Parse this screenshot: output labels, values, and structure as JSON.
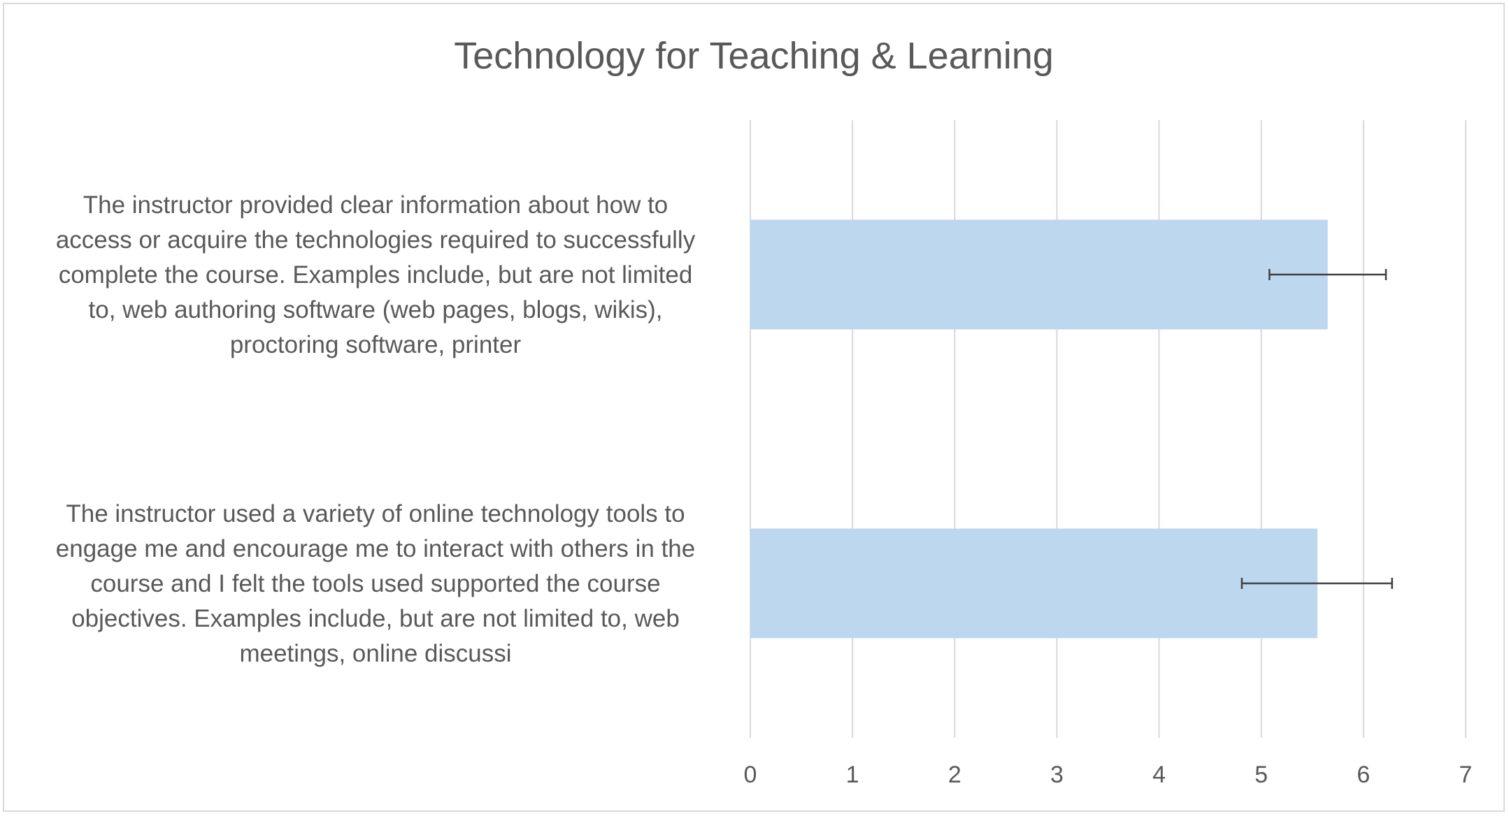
{
  "chart_data": {
    "type": "bar",
    "orientation": "horizontal",
    "title": "Technology for Teaching & Learning",
    "xlabel": "",
    "ylabel": "",
    "xlim": [
      0,
      7
    ],
    "x_ticks": [
      "0",
      "1",
      "2",
      "3",
      "4",
      "5",
      "6",
      "7"
    ],
    "grid": true,
    "legend": "none",
    "bar_color": "#bdd7ee",
    "error_bar_color": "#404040",
    "categories": [
      {
        "label_lines": [
          "The instructor provided clear information about how to",
          "access or acquire the technologies required to successfully",
          "complete the course. Examples include, but are not limited",
          "to, web authoring software (web pages, blogs, wikis),",
          "proctoring software, printer"
        ],
        "value": 5.65,
        "error_low": 5.08,
        "error_high": 6.22
      },
      {
        "label_lines": [
          "The instructor used a variety of online technology tools to",
          "engage me and encourage me to interact with others in the",
          "course and I felt the tools used supported the course",
          "objectives.  Examples include, but are not limited to, web",
          "meetings, online discussi"
        ],
        "value": 5.55,
        "error_low": 4.81,
        "error_high": 6.28
      }
    ]
  }
}
